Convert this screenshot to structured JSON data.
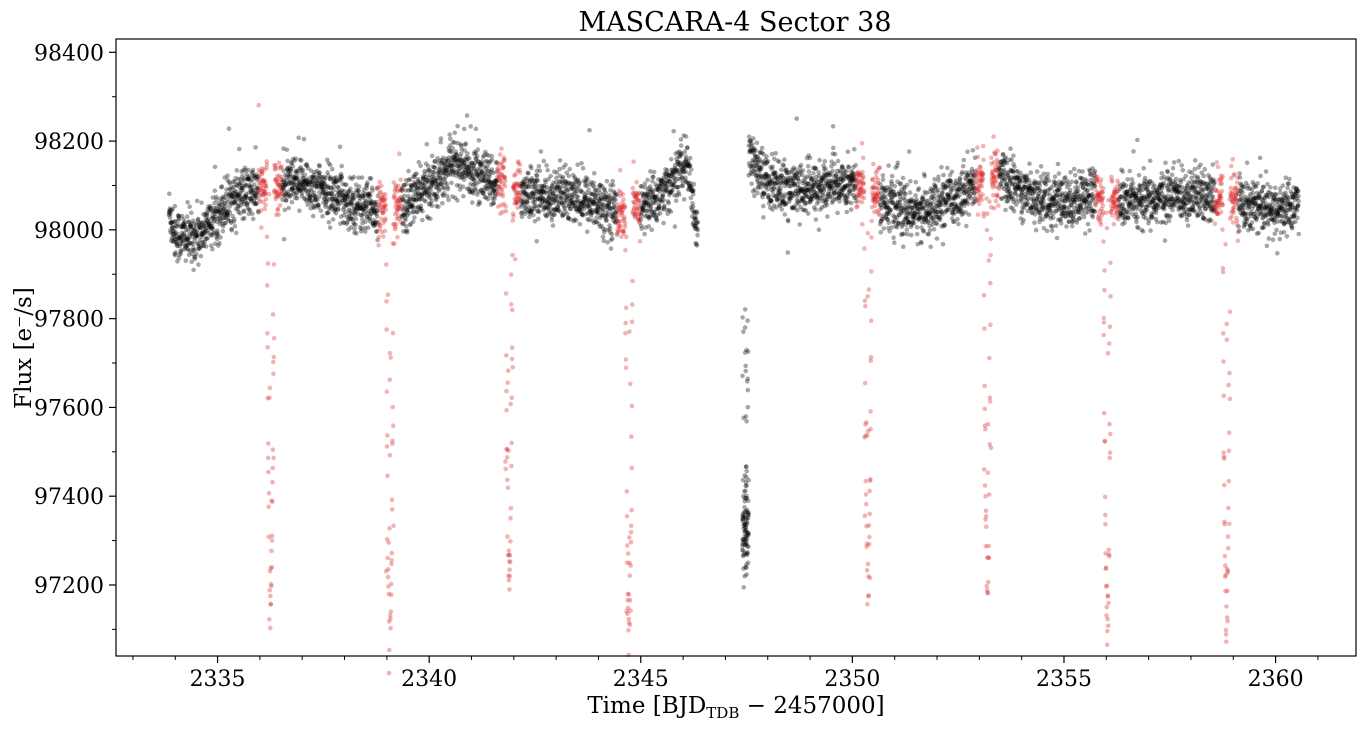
{
  "chart_data": {
    "type": "scatter",
    "title": "MASCARA-4 Sector 38",
    "xlabel": {
      "prefix": "Time [BJD",
      "subscript": "TDB",
      "suffix": " − 2457000]"
    },
    "ylabel": "Flux [e⁻/s]",
    "xlim": [
      2332.6,
      2361.9
    ],
    "ylim": [
      97040,
      98430
    ],
    "xticks": [
      2335,
      2340,
      2345,
      2350,
      2355,
      2360
    ],
    "xtick_labels": [
      "2335",
      "2340",
      "2345",
      "2350",
      "2355",
      "2360"
    ],
    "yticks": [
      97200,
      97400,
      97600,
      97800,
      98000,
      98200,
      98400
    ],
    "ytick_labels": [
      "97200",
      "97400",
      "97600",
      "97800",
      "98000",
      "98200",
      "98400"
    ],
    "grid": false,
    "colors": {
      "out_of_transit": "#000000",
      "in_transit": "#d62728"
    },
    "period": 2.824,
    "transit_windows": [
      {
        "center": 2336.25,
        "depth_min": 97170
      },
      {
        "center": 2339.07,
        "depth_min": 97100
      },
      {
        "center": 2341.89,
        "depth_min": 97210
      },
      {
        "center": 2344.72,
        "depth_min": 97110
      },
      {
        "center": 2350.37,
        "depth_min": 97190
      },
      {
        "center": 2353.19,
        "depth_min": 97195
      },
      {
        "center": 2356.02,
        "depth_min": 97135
      },
      {
        "center": 2358.84,
        "depth_min": 97130
      }
    ],
    "series": [
      {
        "role": "out_of_transit",
        "baseline": {
          "x": [
            2333.8,
            2334.0,
            2334.4,
            2334.8,
            2335.2,
            2335.6,
            2336.0,
            2336.6,
            2337.0,
            2337.5,
            2338.0,
            2338.5,
            2339.0,
            2339.5,
            2340.0,
            2340.3,
            2340.6,
            2341.0,
            2341.5,
            2342.0,
            2342.5,
            2343.0,
            2343.5,
            2344.0,
            2344.5,
            2345.0,
            2345.5,
            2345.9,
            2346.1,
            2346.3,
            2347.5,
            2347.7,
            2348.0,
            2348.5,
            2349.0,
            2349.5,
            2350.0,
            2350.5,
            2351.0,
            2351.5,
            2352.0,
            2352.5,
            2353.0,
            2353.5,
            2354.0,
            2354.5,
            2355.0,
            2355.5,
            2356.0,
            2356.5,
            2357.0,
            2357.5,
            2358.0,
            2358.5,
            2359.0,
            2359.5,
            2360.0,
            2360.5
          ],
          "y": [
            98060,
            97990,
            97980,
            98010,
            98060,
            98080,
            98090,
            98100,
            98100,
            98090,
            98070,
            98050,
            98040,
            98060,
            98100,
            98130,
            98150,
            98130,
            98110,
            98090,
            98080,
            98080,
            98070,
            98060,
            98040,
            98050,
            98080,
            98130,
            98150,
            98000,
            98170,
            98140,
            98110,
            98090,
            98090,
            98100,
            98110,
            98080,
            98050,
            98040,
            98050,
            98080,
            98110,
            98120,
            98090,
            98070,
            98060,
            98080,
            98070,
            98060,
            98060,
            98080,
            98080,
            98070,
            98070,
            98050,
            98040,
            98060
          ]
        },
        "scatter_sigma": 30,
        "egress_points": {
          "x_range": [
            2347.4,
            2347.55
          ],
          "y_range": [
            97280,
            97910
          ]
        }
      },
      {
        "role": "in_transit",
        "half_width": 0.28,
        "flat_bottom": false
      }
    ]
  }
}
